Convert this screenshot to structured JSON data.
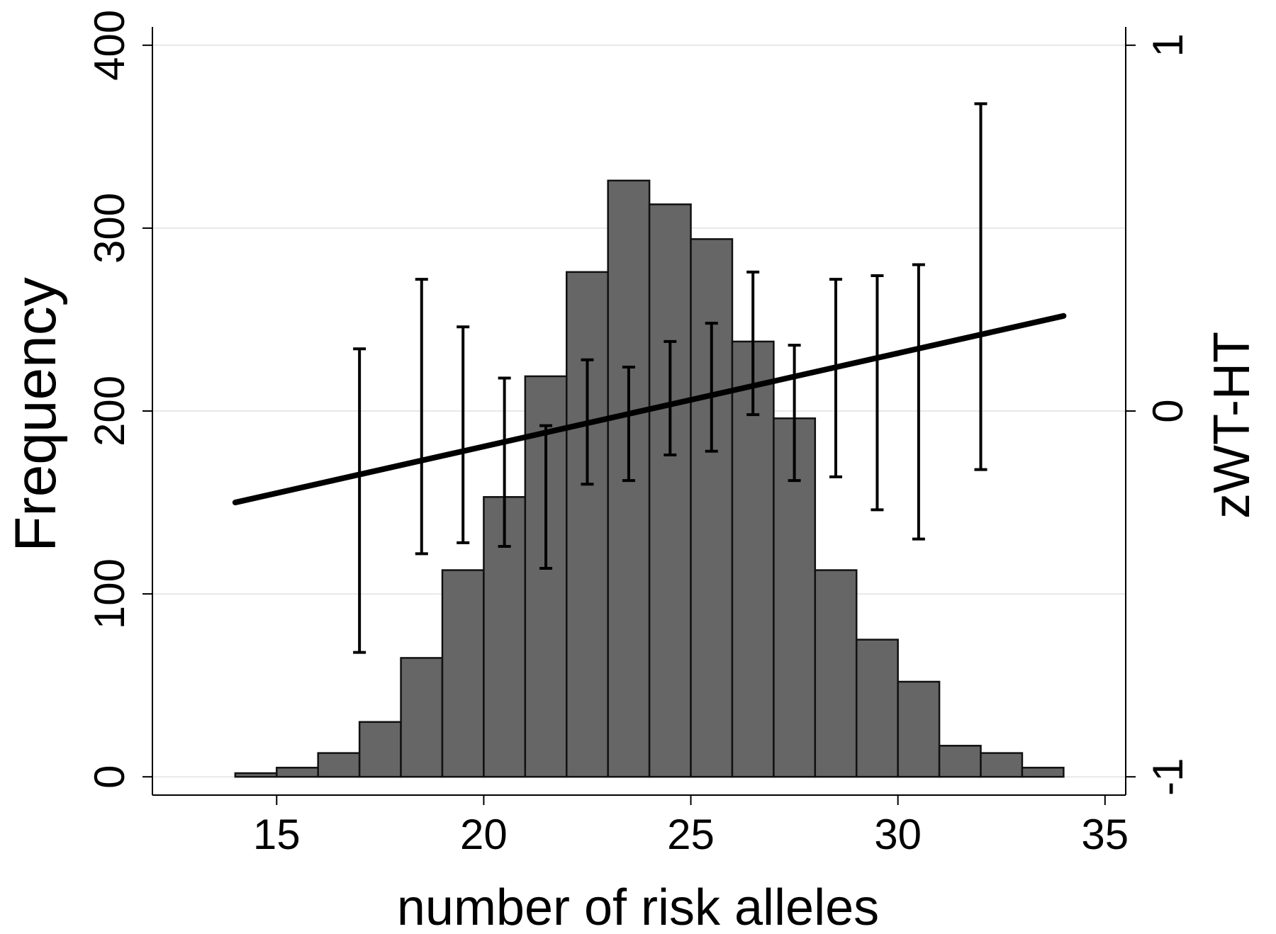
{
  "chart_data": {
    "type": "bar",
    "xlabel": "number of risk alleles",
    "ylabel": "Frequency",
    "y2label": "zWT-HT",
    "xlim": [
      12,
      35.5
    ],
    "ylim": [
      -10,
      410
    ],
    "y2lim": [
      -1.0,
      1.0
    ],
    "x_ticks": [
      15,
      20,
      25,
      30,
      35
    ],
    "y_ticks": [
      0,
      100,
      200,
      300,
      400
    ],
    "y2_ticks": [
      -1,
      0,
      1
    ],
    "grid": true,
    "histogram": {
      "bin_width": 1,
      "bins": [
        {
          "start": 14,
          "count": 2
        },
        {
          "start": 15,
          "count": 5
        },
        {
          "start": 16,
          "count": 13
        },
        {
          "start": 17,
          "count": 30
        },
        {
          "start": 18,
          "count": 65
        },
        {
          "start": 19,
          "count": 113
        },
        {
          "start": 20,
          "count": 153
        },
        {
          "start": 21,
          "count": 219
        },
        {
          "start": 22,
          "count": 276
        },
        {
          "start": 23,
          "count": 326
        },
        {
          "start": 24,
          "count": 313
        },
        {
          "start": 25,
          "count": 294
        },
        {
          "start": 26,
          "count": 238
        },
        {
          "start": 27,
          "count": 196
        },
        {
          "start": 28,
          "count": 113
        },
        {
          "start": 29,
          "count": 75
        },
        {
          "start": 30,
          "count": 52
        },
        {
          "start": 31,
          "count": 17
        },
        {
          "start": 32,
          "count": 13
        },
        {
          "start": 33,
          "count": 5
        }
      ]
    },
    "error_bars": [
      {
        "x": 17,
        "low": -0.66,
        "high": 0.17
      },
      {
        "x": 18.5,
        "low": -0.39,
        "high": 0.36
      },
      {
        "x": 19.5,
        "low": -0.36,
        "high": 0.23
      },
      {
        "x": 20.5,
        "low": -0.37,
        "high": 0.09
      },
      {
        "x": 21.5,
        "low": -0.43,
        "high": -0.04
      },
      {
        "x": 22.5,
        "low": -0.2,
        "high": 0.14
      },
      {
        "x": 23.5,
        "low": -0.19,
        "high": 0.12
      },
      {
        "x": 24.5,
        "low": -0.12,
        "high": 0.19
      },
      {
        "x": 25.5,
        "low": -0.11,
        "high": 0.24
      },
      {
        "x": 26.5,
        "low": -0.01,
        "high": 0.38
      },
      {
        "x": 27.5,
        "low": -0.19,
        "high": 0.18
      },
      {
        "x": 28.5,
        "low": -0.18,
        "high": 0.36
      },
      {
        "x": 29.5,
        "low": -0.27,
        "high": 0.37
      },
      {
        "x": 30.5,
        "low": -0.35,
        "high": 0.4
      },
      {
        "x": 32,
        "low": -0.16,
        "high": 0.84
      }
    ],
    "fit_line": {
      "x": [
        14,
        34
      ],
      "y": [
        -0.25,
        0.26
      ]
    }
  }
}
